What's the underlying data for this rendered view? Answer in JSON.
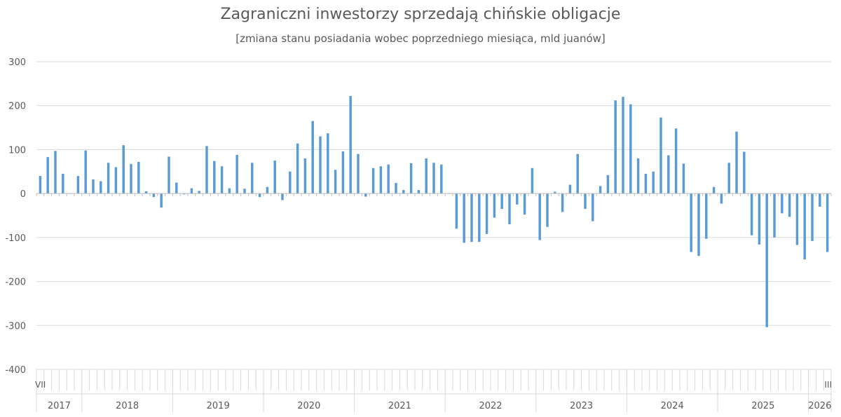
{
  "title": "Zagraniczni inwestorzy sprzedają chińskie obligacje",
  "subtitle": "[zmiana stanu posiadania wobec poprzedniego miesiąca, mld juanów]",
  "chart_data": {
    "type": "bar",
    "title": "Zagraniczni inwestorzy sprzedają chińskie obligacje",
    "subtitle": "[zmiana stanu posiadania wobec poprzedniego miesiąca, mld juanów]",
    "xlabel": "",
    "ylabel": "",
    "ylim": [
      -400,
      300
    ],
    "yticks": [
      300,
      200,
      100,
      0,
      -100,
      -200,
      -300,
      -400
    ],
    "grid": true,
    "bar_color": "#5B9BD5",
    "start_month": "2017-07",
    "end_month": "2026-03",
    "edge_labels": {
      "first": "VII",
      "last": "III"
    },
    "years": [
      "2017",
      "2018",
      "2019",
      "2020",
      "2021",
      "2022",
      "2023",
      "2024",
      "2025",
      "2026"
    ],
    "values": [
      40,
      83,
      97,
      45,
      0,
      40,
      98,
      32,
      28,
      70,
      60,
      110,
      67,
      72,
      5,
      -8,
      -32,
      84,
      25,
      -2,
      12,
      6,
      108,
      74,
      62,
      12,
      88,
      11,
      70,
      -8,
      15,
      75,
      -15,
      50,
      114,
      80,
      165,
      130,
      137,
      54,
      96,
      222,
      90,
      -7,
      58,
      62,
      66,
      24,
      8,
      69,
      8,
      80,
      70,
      66,
      0,
      -80,
      -112,
      -110,
      -110,
      -92,
      -55,
      -35,
      -70,
      -25,
      -48,
      58,
      -106,
      -76,
      4,
      -42,
      20,
      90,
      -35,
      -63,
      17,
      42,
      212,
      220,
      203,
      80,
      45,
      50,
      173,
      87,
      148,
      68,
      -133,
      -142,
      -103,
      15,
      -23,
      70,
      141,
      95,
      -95,
      -116,
      -304,
      -100,
      -45,
      -53,
      -117,
      -150,
      -108,
      -30,
      -133
    ]
  }
}
